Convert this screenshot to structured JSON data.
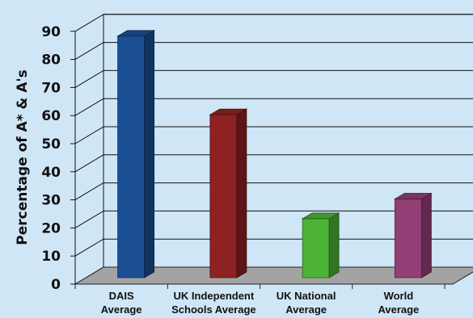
{
  "chart_data": {
    "type": "bar",
    "ylabel": "Percentage of A* & A's",
    "categories": [
      [
        "DAIS",
        "Average"
      ],
      [
        "UK Independent",
        "Schools  Average"
      ],
      [
        "UK National",
        "Average"
      ],
      [
        "World",
        "Average"
      ]
    ],
    "values": [
      86,
      58,
      21,
      28
    ],
    "bar_colors": [
      "#1a4f94",
      "#8e2222",
      "#4cb336",
      "#933f76"
    ],
    "ylim": [
      0,
      90
    ],
    "yticks": [
      0,
      10,
      20,
      30,
      40,
      50,
      60,
      70,
      80,
      90
    ],
    "grid": true,
    "style": "3d-bar"
  }
}
